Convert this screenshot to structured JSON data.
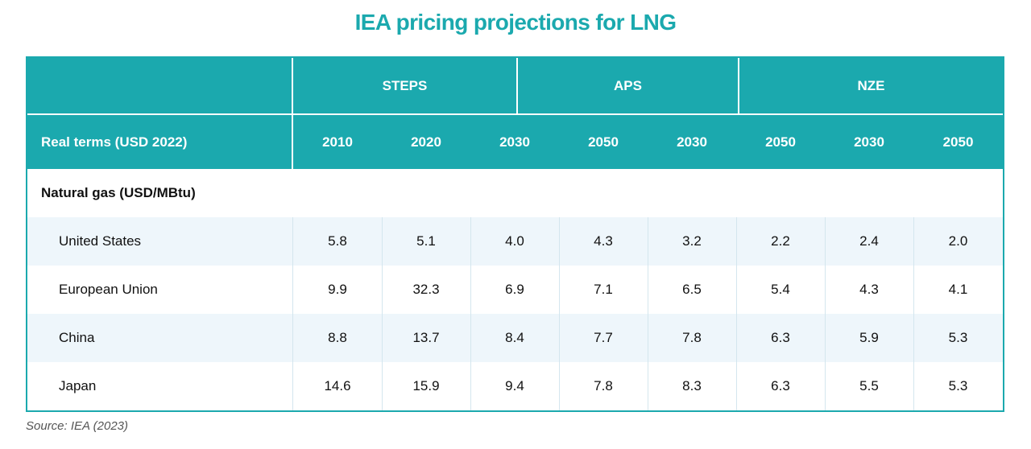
{
  "title": "IEA pricing projections for LNG",
  "header": {
    "groups": [
      "STEPS",
      "APS",
      "NZE"
    ],
    "row_label": "Real terms (USD 2022)",
    "years": [
      "2010",
      "2020",
      "2030",
      "2050",
      "2030",
      "2050",
      "2030",
      "2050"
    ]
  },
  "section_label": "Natural gas (USD/MBtu)",
  "rows": [
    {
      "label": "United States",
      "values": [
        "5.8",
        "5.1",
        "4.0",
        "4.3",
        "3.2",
        "2.2",
        "2.4",
        "2.0"
      ]
    },
    {
      "label": "European Union",
      "values": [
        "9.9",
        "32.3",
        "6.9",
        "7.1",
        "6.5",
        "5.4",
        "4.3",
        "4.1"
      ]
    },
    {
      "label": "China",
      "values": [
        "8.8",
        "13.7",
        "8.4",
        "7.7",
        "7.8",
        "6.3",
        "5.9",
        "5.3"
      ]
    },
    {
      "label": "Japan",
      "values": [
        "14.6",
        "15.9",
        "9.4",
        "7.8",
        "8.3",
        "6.3",
        "5.5",
        "5.3"
      ]
    }
  ],
  "source": "Source: IEA (2023)",
  "colors": {
    "accent": "#1ba9ae",
    "row_shade": "#eef6fb",
    "text": "#111111"
  }
}
